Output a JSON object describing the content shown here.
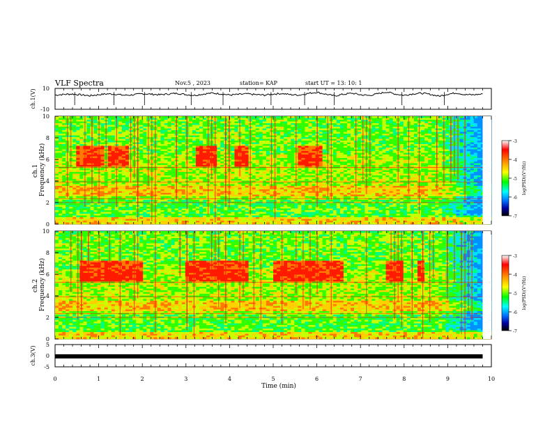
{
  "header": {
    "title": "VLF Spectra",
    "date": "Nov.5  , 2023",
    "station": "station= KAP",
    "start": "start  UT  =   13: 10: 1"
  },
  "colorbar": {
    "label": "log(PSD)(V²/Hz)",
    "ticks": [
      "-3",
      "-4",
      "-5",
      "-6",
      "-7"
    ],
    "colors": [
      "#ffffff",
      "#ff0000",
      "#ffa000",
      "#ffff00",
      "#00ff00",
      "#00ffff",
      "#0070ff",
      "#0000a0",
      "#000000"
    ]
  },
  "chart_data": [
    {
      "type": "line",
      "ylabel": "ch.1(V)",
      "ylim": [
        -10,
        10
      ],
      "yticks": [
        "10",
        "-10"
      ],
      "xlim": [
        0,
        10
      ],
      "x_step": 0.2,
      "values": [
        3.6,
        4.3,
        4.6,
        3.8,
        3.0,
        4.0,
        4.8,
        4.4,
        3.4,
        3.9,
        4.9,
        4.5,
        3.9,
        4.7,
        5.3,
        4.1,
        3.4,
        4.6,
        5.5,
        4.8,
        3.7,
        4.2,
        4.8,
        4.0,
        3.6,
        4.6,
        5.1,
        4.0,
        3.6,
        5.2,
        6.3,
        4.5,
        2.8,
        4.3,
        5.4,
        3.9,
        3.2,
        4.9,
        6.6,
        4.6,
        3.4,
        4.8,
        5.4,
        4.3,
        2.6,
        4.5,
        5.7,
        4.0,
        3.9,
        4.6
      ]
    },
    {
      "type": "heatmap",
      "ylabel": "ch.1\nFrequency  (kHz)",
      "ylim": [
        0,
        10
      ],
      "yticks": [
        "0",
        "2",
        "4",
        "6",
        "8",
        "10"
      ],
      "xlim": [
        0,
        10
      ]
    },
    {
      "type": "heatmap",
      "ylabel": "ch.2\nFrequency  (kHz)",
      "ylim": [
        0,
        10
      ],
      "yticks": [
        "0",
        "2",
        "4",
        "6",
        "8",
        "10"
      ],
      "xlim": [
        0,
        10
      ]
    },
    {
      "type": "line",
      "ylabel": "ch.3(V)",
      "ylim": [
        -5,
        5
      ],
      "yticks": [
        "5",
        "0",
        "-5"
      ],
      "xlim": [
        0,
        10
      ],
      "x": [
        0,
        9.8
      ],
      "values": [
        -0.3,
        -0.3
      ]
    }
  ],
  "xaxis": {
    "label": "Time  (min)",
    "ticks": [
      "0",
      "1",
      "2",
      "3",
      "4",
      "5",
      "6",
      "7",
      "8",
      "9",
      "10"
    ]
  }
}
